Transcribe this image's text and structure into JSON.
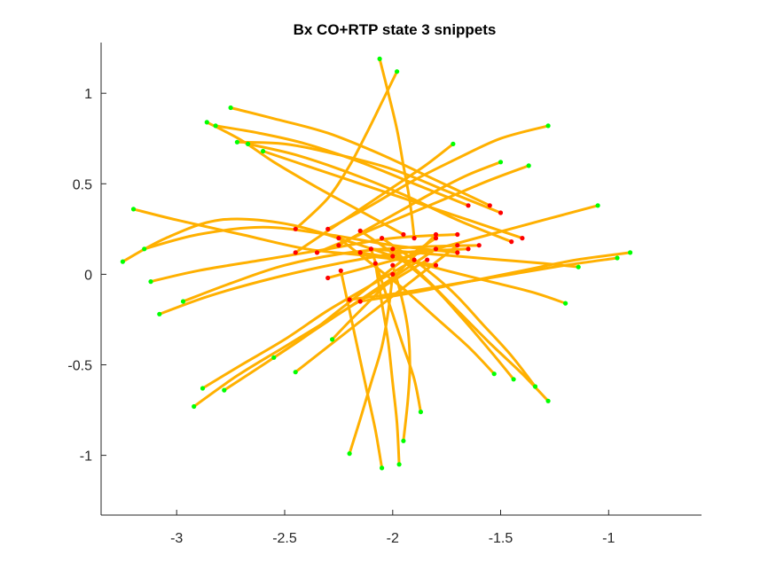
{
  "chart_data": {
    "type": "line",
    "title": "Bx  CO+RTP state 3 snippets",
    "xlabel": "",
    "ylabel": "",
    "xlim": [
      -3.35,
      -0.57
    ],
    "ylim": [
      -1.33,
      1.28
    ],
    "xticks": [
      -3,
      -2.5,
      -2,
      -1.5,
      -1
    ],
    "xtick_labels": [
      "-3",
      "-2.5",
      "-2",
      "-1.5",
      "-1"
    ],
    "yticks": [
      -1,
      -0.5,
      0,
      0.5,
      1
    ],
    "ytick_labels": [
      "-1",
      "-0.5",
      "0",
      "0.5",
      "1"
    ],
    "grid": false,
    "box": "left-bottom",
    "colors": {
      "trajectory": "#FFB000",
      "start_marker": "#00FF00",
      "end_marker": "#FF0000"
    },
    "series": [
      {
        "x": [
          -3.25,
          -3.05,
          -2.8,
          -2.5,
          -2.2,
          -2.0
        ],
        "y": [
          0.07,
          0.2,
          0.3,
          0.28,
          0.18,
          0.1
        ]
      },
      {
        "x": [
          -3.2,
          -3.0,
          -2.7,
          -2.4,
          -2.1,
          -1.8
        ],
        "y": [
          0.36,
          0.3,
          0.22,
          0.14,
          0.1,
          0.05
        ]
      },
      {
        "x": [
          -3.15,
          -2.9,
          -2.6,
          -2.3,
          -2.0,
          -1.7
        ],
        "y": [
          0.14,
          0.22,
          0.26,
          0.22,
          0.16,
          0.12
        ]
      },
      {
        "x": [
          -3.08,
          -2.85,
          -2.55,
          -2.25,
          -1.95,
          -1.65
        ],
        "y": [
          -0.22,
          -0.12,
          -0.02,
          0.06,
          0.12,
          0.14
        ]
      },
      {
        "x": [
          -3.12,
          -2.9,
          -2.6,
          -2.3,
          -2.0,
          -1.7
        ],
        "y": [
          -0.04,
          0.02,
          0.08,
          0.14,
          0.2,
          0.22
        ]
      },
      {
        "x": [
          -2.97,
          -2.75,
          -2.5,
          -2.2,
          -1.9,
          -1.6
        ],
        "y": [
          -0.15,
          -0.05,
          0.05,
          0.12,
          0.15,
          0.16
        ]
      },
      {
        "x": [
          -2.86,
          -2.7,
          -2.55,
          -2.35,
          -2.15,
          -1.95
        ],
        "y": [
          0.84,
          0.74,
          0.62,
          0.48,
          0.35,
          0.22
        ]
      },
      {
        "x": [
          -2.82,
          -2.62,
          -2.4,
          -2.15,
          -1.9,
          -1.65
        ],
        "y": [
          0.82,
          0.78,
          0.72,
          0.62,
          0.5,
          0.38
        ]
      },
      {
        "x": [
          -2.75,
          -2.55,
          -2.3,
          -2.05,
          -1.8,
          -1.55
        ],
        "y": [
          0.92,
          0.86,
          0.78,
          0.66,
          0.52,
          0.38
        ]
      },
      {
        "x": [
          -2.72,
          -2.5,
          -2.25,
          -2.0,
          -1.75,
          -1.5
        ],
        "y": [
          0.73,
          0.72,
          0.66,
          0.58,
          0.46,
          0.34
        ]
      },
      {
        "x": [
          -2.67,
          -2.45,
          -2.2,
          -1.95,
          -1.7,
          -1.45
        ],
        "y": [
          0.72,
          0.66,
          0.56,
          0.44,
          0.3,
          0.18
        ]
      },
      {
        "x": [
          -2.6,
          -2.4,
          -2.15,
          -1.9,
          -1.65,
          -1.4
        ],
        "y": [
          0.68,
          0.6,
          0.5,
          0.4,
          0.3,
          0.2
        ]
      },
      {
        "x": [
          -2.06,
          -2.02,
          -1.98,
          -1.95,
          -1.92,
          -1.9
        ],
        "y": [
          1.19,
          1.0,
          0.8,
          0.6,
          0.4,
          0.2
        ]
      },
      {
        "x": [
          -1.98,
          -2.05,
          -2.12,
          -2.2,
          -2.3,
          -2.45
        ],
        "y": [
          1.12,
          0.95,
          0.78,
          0.6,
          0.42,
          0.25
        ]
      },
      {
        "x": [
          -1.72,
          -1.85,
          -2.0,
          -2.15,
          -2.3,
          -2.45
        ],
        "y": [
          0.72,
          0.6,
          0.48,
          0.36,
          0.24,
          0.12
        ]
      },
      {
        "x": [
          -1.5,
          -1.65,
          -1.8,
          -1.95,
          -2.1,
          -2.25
        ],
        "y": [
          0.62,
          0.55,
          0.46,
          0.36,
          0.26,
          0.16
        ]
      },
      {
        "x": [
          -1.28,
          -1.5,
          -1.7,
          -1.9,
          -2.1,
          -2.3
        ],
        "y": [
          0.82,
          0.75,
          0.64,
          0.52,
          0.38,
          0.25
        ]
      },
      {
        "x": [
          -1.37,
          -1.55,
          -1.75,
          -1.95,
          -2.15,
          -2.35
        ],
        "y": [
          0.6,
          0.52,
          0.42,
          0.32,
          0.22,
          0.12
        ]
      },
      {
        "x": [
          -1.05,
          -1.3,
          -1.55,
          -1.8,
          -2.05,
          -2.3
        ],
        "y": [
          0.38,
          0.3,
          0.22,
          0.14,
          0.06,
          -0.02
        ]
      },
      {
        "x": [
          -0.9,
          -1.15,
          -1.4,
          -1.65,
          -1.9,
          -2.15
        ],
        "y": [
          0.12,
          0.08,
          0.02,
          -0.04,
          -0.1,
          -0.15
        ]
      },
      {
        "x": [
          -0.96,
          -1.2,
          -1.45,
          -1.7,
          -1.95,
          -2.2
        ],
        "y": [
          0.09,
          0.05,
          0.0,
          -0.05,
          -0.1,
          -0.14
        ]
      },
      {
        "x": [
          -1.2,
          -1.35,
          -1.55,
          -1.75,
          -1.95,
          -2.15
        ],
        "y": [
          -0.16,
          -0.1,
          -0.04,
          0.02,
          0.08,
          0.12
        ]
      },
      {
        "x": [
          -1.14,
          -1.3,
          -1.5,
          -1.7,
          -1.9,
          -2.1
        ],
        "y": [
          0.04,
          0.06,
          0.08,
          0.1,
          0.12,
          0.14
        ]
      },
      {
        "x": [
          -1.28,
          -1.4,
          -1.55,
          -1.7,
          -1.85,
          -2.0
        ],
        "y": [
          -0.7,
          -0.55,
          -0.38,
          -0.2,
          -0.02,
          0.14
        ]
      },
      {
        "x": [
          -1.34,
          -1.45,
          -1.58,
          -1.72,
          -1.88,
          -2.05
        ],
        "y": [
          -0.62,
          -0.45,
          -0.28,
          -0.1,
          0.06,
          0.2
        ]
      },
      {
        "x": [
          -1.44,
          -1.55,
          -1.68,
          -1.82,
          -1.98,
          -2.15
        ],
        "y": [
          -0.58,
          -0.42,
          -0.24,
          -0.06,
          0.1,
          0.24
        ]
      },
      {
        "x": [
          -1.53,
          -1.65,
          -1.8,
          -1.95,
          -2.1,
          -2.25
        ],
        "y": [
          -0.55,
          -0.4,
          -0.24,
          -0.08,
          0.06,
          0.2
        ]
      },
      {
        "x": [
          -1.87,
          -1.9,
          -1.95,
          -2.0,
          -2.05,
          -2.1
        ],
        "y": [
          -0.76,
          -0.58,
          -0.4,
          -0.22,
          -0.04,
          0.14
        ]
      },
      {
        "x": [
          -1.97,
          -1.98,
          -2.0,
          -2.02,
          -2.05,
          -2.08
        ],
        "y": [
          -1.05,
          -0.82,
          -0.6,
          -0.38,
          -0.16,
          0.06
        ]
      },
      {
        "x": [
          -1.95,
          -1.93,
          -1.92,
          -1.93,
          -1.96,
          -2.0
        ],
        "y": [
          -0.92,
          -0.7,
          -0.5,
          -0.3,
          -0.12,
          0.05
        ]
      },
      {
        "x": [
          -2.2,
          -2.15,
          -2.1,
          -2.05,
          -2.02,
          -2.0
        ],
        "y": [
          -0.99,
          -0.8,
          -0.6,
          -0.4,
          -0.2,
          0.0
        ]
      },
      {
        "x": [
          -2.05,
          -2.08,
          -2.12,
          -2.16,
          -2.2,
          -2.24
        ],
        "y": [
          -1.07,
          -0.86,
          -0.64,
          -0.42,
          -0.2,
          0.02
        ]
      },
      {
        "x": [
          -2.88,
          -2.7,
          -2.5,
          -2.3,
          -2.1,
          -1.9
        ],
        "y": [
          -0.63,
          -0.5,
          -0.36,
          -0.2,
          -0.06,
          0.08
        ]
      },
      {
        "x": [
          -2.92,
          -2.72,
          -2.5,
          -2.28,
          -2.06,
          -1.84
        ],
        "y": [
          -0.73,
          -0.56,
          -0.4,
          -0.24,
          -0.08,
          0.08
        ]
      },
      {
        "x": [
          -2.78,
          -2.6,
          -2.4,
          -2.2,
          -2.0,
          -1.8
        ],
        "y": [
          -0.64,
          -0.5,
          -0.34,
          -0.18,
          -0.02,
          0.14
        ]
      },
      {
        "x": [
          -2.55,
          -2.4,
          -2.25,
          -2.1,
          -1.95,
          -1.8
        ],
        "y": [
          -0.46,
          -0.34,
          -0.2,
          -0.06,
          0.08,
          0.2
        ]
      },
      {
        "x": [
          -2.45,
          -2.3,
          -2.15,
          -2.0,
          -1.85,
          -1.7
        ],
        "y": [
          -0.54,
          -0.4,
          -0.26,
          -0.12,
          0.02,
          0.16
        ]
      },
      {
        "x": [
          -2.28,
          -2.2,
          -2.1,
          -2.0,
          -1.9,
          -1.8
        ],
        "y": [
          -0.36,
          -0.26,
          -0.14,
          -0.02,
          0.1,
          0.22
        ]
      }
    ]
  }
}
